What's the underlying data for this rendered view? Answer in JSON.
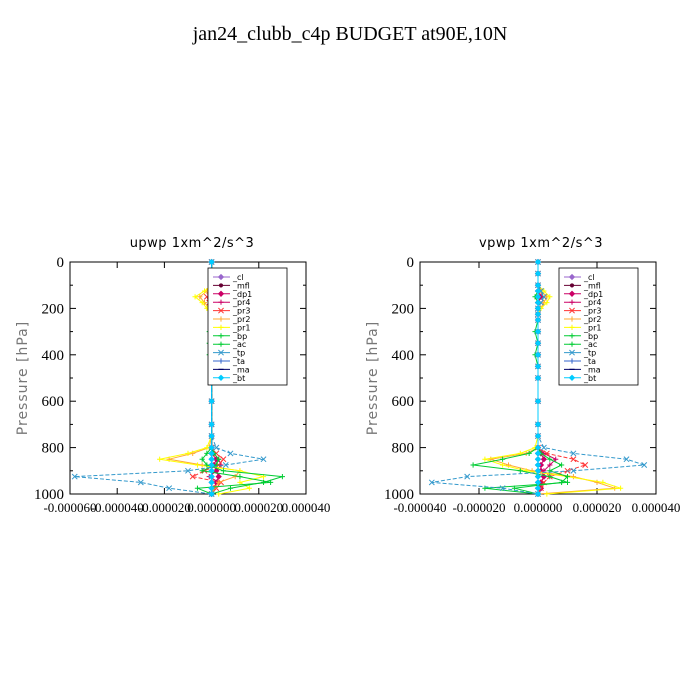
{
  "figure": {
    "title": "jan24_clubb_c4p  BUDGET at90E,10N"
  },
  "legend": [
    {
      "name": "_cl",
      "color": "#9966cc",
      "marker": "diamond"
    },
    {
      "name": "_mfl",
      "color": "#660033",
      "marker": "circle"
    },
    {
      "name": "_dp1",
      "color": "#cc0066",
      "marker": "diamond"
    },
    {
      "name": "_pr4",
      "color": "#cc0066",
      "marker": "plus"
    },
    {
      "name": "_pr3",
      "color": "#ff3333",
      "marker": "x"
    },
    {
      "name": "_pr2",
      "color": "#ffaa33",
      "marker": "plus"
    },
    {
      "name": "_pr1",
      "color": "#ffff00",
      "marker": "plus"
    },
    {
      "name": "_bp",
      "color": "#00cc33",
      "marker": "plus"
    },
    {
      "name": "_ac",
      "color": "#00cc33",
      "marker": "plus"
    },
    {
      "name": "_tp",
      "color": "#3399cc",
      "marker": "x"
    },
    {
      "name": "_ta",
      "color": "#3366cc",
      "marker": "plus"
    },
    {
      "name": "_ma",
      "color": "#000066",
      "marker": "dash"
    },
    {
      "name": "_bt",
      "color": "#00ccff",
      "marker": "diamond"
    }
  ],
  "chart_data": [
    {
      "type": "line",
      "title": "upwp   1xm^2/s^3",
      "ylabel": "Pressure [hPa]",
      "xlabel": "",
      "xlim": [
        -6e-05,
        4e-05
      ],
      "ylim": [
        1000,
        0
      ],
      "y_ticks": [
        0,
        200,
        400,
        600,
        800,
        1000
      ],
      "x_ticks": [
        -6e-05,
        -4e-05,
        -2e-05,
        0.0,
        2e-05,
        4e-05
      ],
      "x_tick_labels": [
        "-0.000060",
        "-0.000040",
        "-0.000020",
        "0.000000",
        "0.000020",
        "0.000040"
      ],
      "legend_position": "top-right",
      "pressure": [
        0,
        50,
        100,
        125,
        150,
        175,
        200,
        225,
        250,
        300,
        350,
        400,
        450,
        500,
        600,
        700,
        750,
        800,
        825,
        850,
        875,
        900,
        925,
        950,
        975,
        1000
      ],
      "series": [
        {
          "name": "_cl",
          "values": [
            0,
            0,
            0,
            0,
            0,
            0,
            0,
            0,
            0,
            0,
            0,
            0,
            0,
            0,
            0,
            0,
            0,
            0,
            0,
            0,
            0,
            0,
            0,
            0,
            0,
            0
          ]
        },
        {
          "name": "_mfl",
          "values": [
            0,
            0,
            0,
            0,
            0,
            0,
            0,
            0,
            0,
            0,
            0,
            0,
            0,
            0,
            0,
            0,
            0,
            0,
            0,
            0,
            0,
            0,
            0,
            0,
            0,
            0
          ]
        },
        {
          "name": "_dp1",
          "values": [
            0,
            0,
            0,
            1e-06,
            1e-06,
            0,
            0,
            0,
            0,
            0,
            0,
            0,
            0,
            0,
            0,
            0,
            0,
            0,
            0,
            2e-06,
            1e-06,
            2e-06,
            3e-06,
            2e-06,
            1e-06,
            0
          ]
        },
        {
          "name": "_pr4",
          "values": [
            0,
            0,
            0,
            1e-06,
            2e-06,
            1e-06,
            0,
            0,
            0,
            0,
            0,
            0,
            0,
            0,
            0,
            0,
            0,
            0,
            1e-06,
            3e-06,
            4e-06,
            2e-06,
            -1e-06,
            3e-06,
            1e-06,
            0
          ]
        },
        {
          "name": "_pr3",
          "values": [
            0,
            0,
            0,
            -1e-06,
            -2e-06,
            -1e-06,
            0,
            0,
            0,
            0,
            0,
            0,
            0,
            0,
            0,
            0,
            0,
            0,
            2e-06,
            5e-06,
            3e-06,
            -3e-06,
            -8e-06,
            4e-06,
            2e-06,
            0
          ]
        },
        {
          "name": "_pr2",
          "values": [
            0,
            0,
            0,
            -2e-06,
            -5e-06,
            -3e-06,
            -1e-06,
            0,
            0,
            0,
            0,
            0,
            0,
            0,
            0,
            0,
            0,
            -1e-06,
            -8e-06,
            -1.8e-05,
            -4e-06,
            1.2e-05,
            1e-05,
            3e-06,
            1e-06,
            0
          ]
        },
        {
          "name": "_pr1",
          "values": [
            0,
            0,
            0,
            -3e-06,
            -7e-06,
            -4e-06,
            -2e-06,
            0,
            0,
            0,
            0,
            0,
            0,
            0,
            0,
            0,
            0,
            -2e-06,
            -1e-05,
            -2.2e-05,
            -6e-06,
            1.2e-05,
            2.2e-05,
            1.2e-05,
            1.6e-05,
            3e-06
          ]
        },
        {
          "name": "_bp",
          "values": [
            0,
            0,
            0,
            0,
            0,
            0,
            0,
            0,
            0,
            -1e-06,
            -1e-06,
            -1e-06,
            0,
            0,
            0,
            0,
            0,
            0,
            -2e-06,
            -4e-06,
            -2e-06,
            5e-06,
            3e-05,
            2.2e-05,
            8e-06,
            0
          ]
        },
        {
          "name": "_ac",
          "values": [
            0,
            0,
            0,
            0,
            0,
            0,
            0,
            0,
            0,
            0,
            0,
            0,
            0,
            0,
            0,
            0,
            0,
            0,
            1e-06,
            3e-06,
            2e-06,
            -4e-06,
            1.2e-05,
            2.5e-05,
            -6e-06,
            0
          ]
        },
        {
          "name": "_tp",
          "values": [
            0,
            0,
            0,
            3e-06,
            9e-06,
            4e-06,
            2e-06,
            0,
            0,
            0,
            0,
            0,
            0,
            0,
            0,
            0,
            0,
            2e-06,
            8e-06,
            2.2e-05,
            6e-06,
            -1e-05,
            -5.8e-05,
            -3e-05,
            -1.8e-05,
            0
          ]
        },
        {
          "name": "_ta",
          "values": [
            0,
            0,
            0,
            0,
            0,
            0,
            0,
            0,
            0,
            0,
            0,
            0,
            0,
            0,
            0,
            0,
            0,
            0,
            0,
            0,
            0,
            0,
            0,
            0,
            0,
            0
          ]
        },
        {
          "name": "_ma",
          "values": [
            0,
            0,
            0,
            0,
            0,
            0,
            0,
            0,
            0,
            0,
            0,
            0,
            0,
            0,
            0,
            0,
            0,
            0,
            0,
            0,
            0,
            0,
            0,
            0,
            0,
            0
          ]
        },
        {
          "name": "_bt",
          "values": [
            0,
            0,
            0,
            0,
            0,
            0,
            0,
            0,
            0,
            0,
            0,
            0,
            0,
            0,
            0,
            0,
            0,
            0,
            0,
            0,
            0,
            0,
            0,
            0,
            0,
            0
          ]
        }
      ]
    },
    {
      "type": "line",
      "title": "vpwp   1xm^2/s^3",
      "ylabel": "Pressure [hPa]",
      "xlabel": "",
      "xlim": [
        -4e-05,
        4e-05
      ],
      "ylim": [
        1000,
        0
      ],
      "y_ticks": [
        0,
        200,
        400,
        600,
        800,
        1000
      ],
      "x_ticks": [
        -4e-05,
        -2e-05,
        0.0,
        2e-05,
        4e-05
      ],
      "x_tick_labels": [
        "-0.000040",
        "-0.000020",
        "0.000000",
        "0.000020",
        "0.000040"
      ],
      "legend_position": "top-right",
      "pressure": [
        0,
        50,
        100,
        125,
        150,
        175,
        200,
        225,
        250,
        300,
        350,
        400,
        450,
        500,
        600,
        700,
        750,
        800,
        825,
        850,
        875,
        900,
        925,
        950,
        975,
        1000
      ],
      "series": [
        {
          "name": "_cl",
          "values": [
            0,
            0,
            0,
            0,
            0,
            0,
            0,
            0,
            0,
            0,
            0,
            0,
            0,
            0,
            0,
            0,
            0,
            0,
            0,
            0,
            0,
            0,
            0,
            0,
            0,
            0
          ]
        },
        {
          "name": "_mfl",
          "values": [
            0,
            0,
            0,
            0,
            0,
            0,
            0,
            0,
            0,
            0,
            0,
            0,
            0,
            0,
            0,
            0,
            0,
            0,
            0,
            0,
            0,
            0,
            0,
            0,
            0,
            0
          ]
        },
        {
          "name": "_dp1",
          "values": [
            0,
            0,
            0,
            0,
            1e-06,
            0,
            0,
            0,
            0,
            0,
            0,
            0,
            0,
            0,
            0,
            0,
            0,
            0,
            1e-06,
            2e-06,
            1e-06,
            1e-06,
            2e-06,
            1e-06,
            1e-06,
            0
          ]
        },
        {
          "name": "_pr4",
          "values": [
            0,
            0,
            0,
            1e-06,
            1e-06,
            0,
            0,
            0,
            0,
            0,
            0,
            0,
            0,
            0,
            0,
            0,
            0,
            0,
            2e-06,
            6e-06,
            4e-06,
            2e-06,
            2e-06,
            1e-06,
            0,
            0
          ]
        },
        {
          "name": "_pr3",
          "values": [
            0,
            0,
            0,
            1e-06,
            2e-06,
            1e-06,
            0,
            0,
            0,
            0,
            0,
            0,
            0,
            0,
            0,
            0,
            0,
            0,
            3e-06,
            1.2e-05,
            1.6e-05,
            1e-05,
            4e-06,
            2e-06,
            1e-06,
            0
          ]
        },
        {
          "name": "_pr2",
          "values": [
            0,
            0,
            0,
            1e-06,
            3e-06,
            2e-06,
            1e-06,
            0,
            0,
            0,
            0,
            0,
            0,
            0,
            0,
            0,
            0,
            0,
            -4e-06,
            -1.6e-05,
            -1e-05,
            -2e-06,
            1.2e-05,
            2e-05,
            2.6e-05,
            0
          ]
        },
        {
          "name": "_pr1",
          "values": [
            0,
            0,
            0,
            2e-06,
            4e-06,
            3e-06,
            1e-06,
            0,
            0,
            0,
            0,
            0,
            0,
            0,
            0,
            0,
            0,
            -1e-06,
            -6e-06,
            -1.8e-05,
            -1.2e-05,
            -4e-06,
            1e-05,
            2.2e-05,
            2.8e-05,
            3e-06
          ]
        },
        {
          "name": "_bp",
          "values": [
            0,
            0,
            0,
            0,
            -1e-06,
            0,
            0,
            0,
            0,
            -1e-06,
            0,
            -1e-06,
            0,
            0,
            0,
            0,
            0,
            0,
            -3e-06,
            -1.2e-05,
            -2.2e-05,
            -6e-06,
            4e-06,
            1e-05,
            -1.8e-05,
            0
          ]
        },
        {
          "name": "_ac",
          "values": [
            0,
            0,
            0,
            0,
            0,
            0,
            0,
            0,
            0,
            0,
            0,
            0,
            0,
            0,
            0,
            0,
            0,
            0,
            1e-06,
            4e-06,
            8e-06,
            4e-06,
            1e-05,
            8e-06,
            -8e-06,
            0
          ]
        },
        {
          "name": "_tp",
          "values": [
            0,
            0,
            0,
            1e-06,
            2e-06,
            1e-06,
            0,
            0,
            0,
            0,
            0,
            0,
            0,
            0,
            0,
            0,
            0,
            2e-06,
            1.2e-05,
            3e-05,
            3.6e-05,
            1.2e-05,
            -2.4e-05,
            -3.6e-05,
            -1.2e-05,
            0
          ]
        },
        {
          "name": "_ta",
          "values": [
            0,
            0,
            0,
            0,
            0,
            0,
            0,
            0,
            0,
            0,
            0,
            0,
            0,
            0,
            0,
            0,
            0,
            0,
            0,
            0,
            0,
            0,
            0,
            0,
            0,
            0
          ]
        },
        {
          "name": "_ma",
          "values": [
            0,
            0,
            0,
            0,
            0,
            0,
            0,
            0,
            0,
            0,
            0,
            0,
            0,
            0,
            0,
            0,
            0,
            0,
            0,
            0,
            0,
            0,
            0,
            0,
            0,
            0
          ]
        },
        {
          "name": "_bt",
          "values": [
            0,
            0,
            0,
            0,
            0,
            0,
            0,
            0,
            0,
            0,
            0,
            0,
            0,
            0,
            0,
            0,
            0,
            0,
            0,
            0,
            0,
            0,
            0,
            0,
            0,
            0
          ]
        }
      ]
    }
  ]
}
